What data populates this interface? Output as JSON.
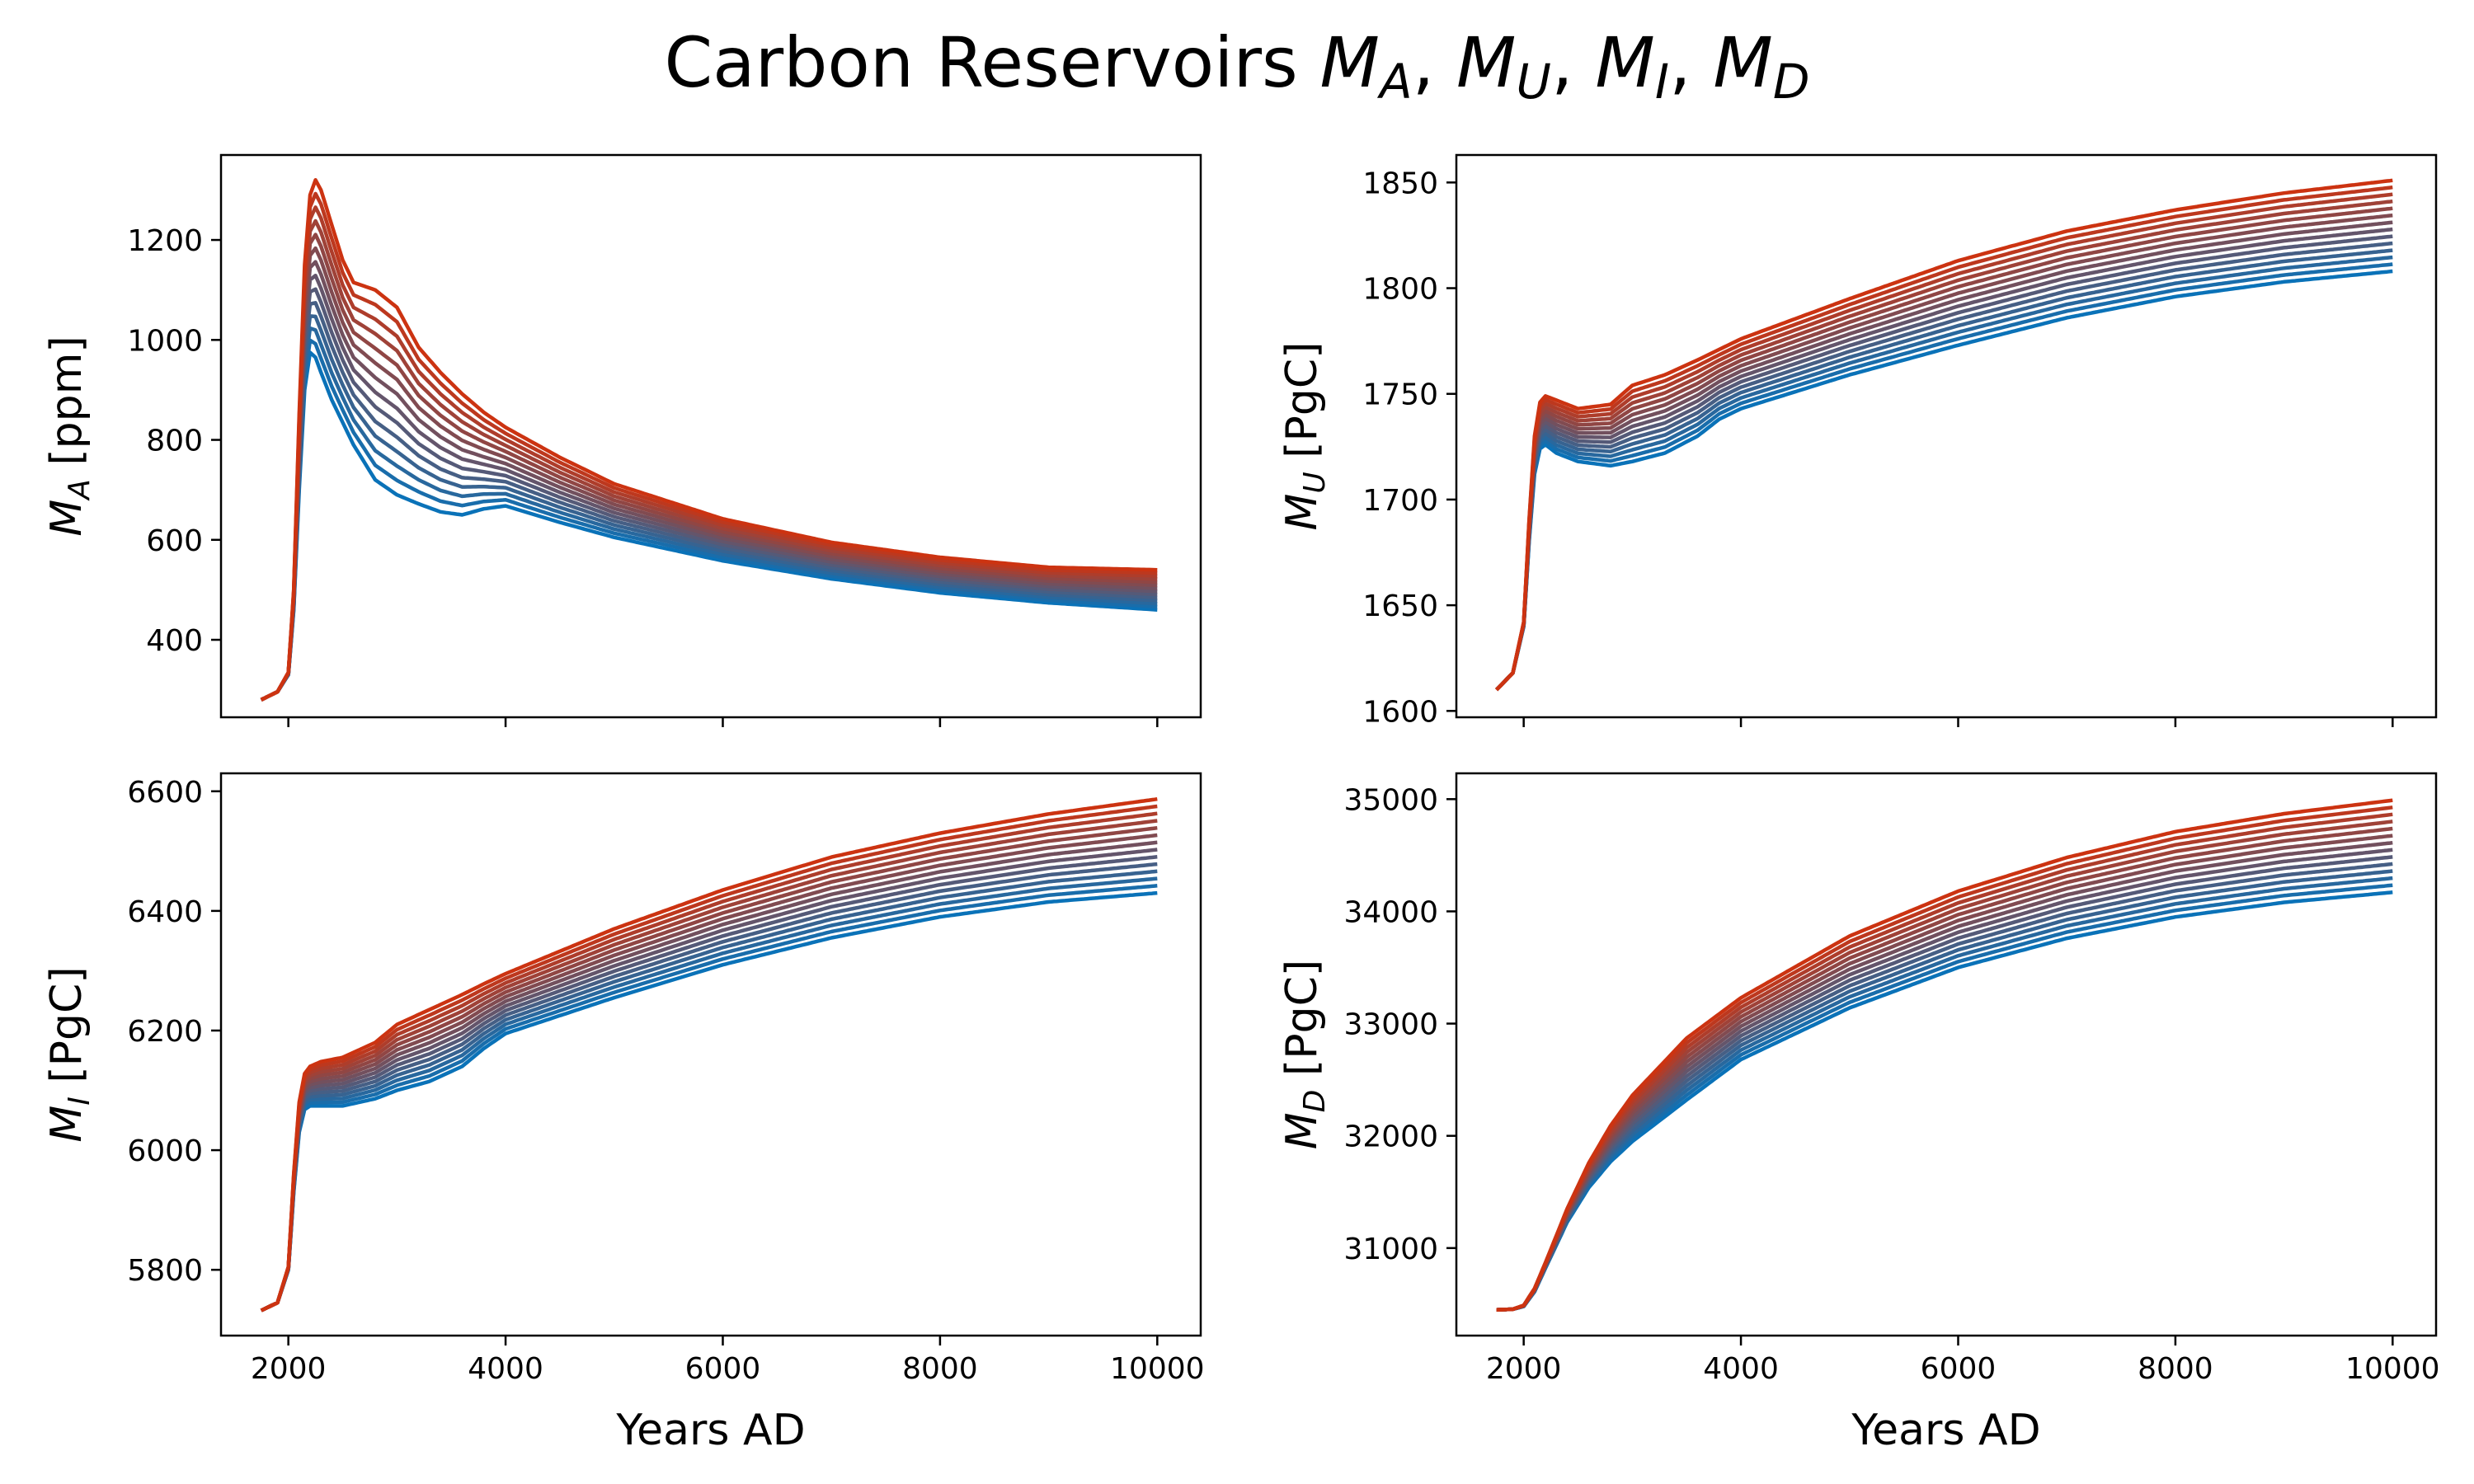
{
  "figure_title": {
    "prefix": "Carbon Reservoirs ",
    "math": [
      {
        "base": "M",
        "sub": "A"
      },
      {
        "base": "M",
        "sub": "U"
      },
      {
        "base": "M",
        "sub": "I"
      },
      {
        "base": "M",
        "sub": "D"
      }
    ],
    "sep": ", "
  },
  "colors": {
    "low": "#0a72b8",
    "high": "#cc3311",
    "axes": "#000000",
    "background": "#ffffff"
  },
  "ensemble": {
    "members": 14
  },
  "chart_data": [
    {
      "id": "MA",
      "type": "line",
      "ylabel": {
        "base": "M",
        "sub": "A",
        "unit": " [ppm]"
      },
      "xlabel": "",
      "xlim": [
        1380,
        10400
      ],
      "ylim": [
        245,
        1370
      ],
      "xticks": [
        2000,
        4000,
        6000,
        8000,
        10000
      ],
      "xtick_labels": [],
      "yticks": [
        400,
        600,
        800,
        1000,
        1200
      ],
      "ytick_labels": [
        "400",
        "600",
        "800",
        "1000",
        "1200"
      ],
      "series_lo": {
        "x": [
          1750,
          1900,
          2000,
          2050,
          2100,
          2150,
          2200,
          2250,
          2300,
          2400,
          2500,
          2600,
          2800,
          3000,
          3200,
          3400,
          3600,
          3800,
          4000,
          4500,
          5000,
          6000,
          7000,
          8000,
          9000,
          10000
        ],
        "y": [
          280,
          296,
          330,
          460,
          700,
          900,
          975,
          965,
          935,
          880,
          835,
          790,
          720,
          690,
          672,
          656,
          650,
          662,
          668,
          635,
          605,
          558,
          522,
          494,
          474,
          460
        ]
      },
      "series_hi": {
        "x": [
          1750,
          1900,
          2000,
          2050,
          2100,
          2150,
          2200,
          2250,
          2300,
          2400,
          2500,
          2600,
          2800,
          3000,
          3200,
          3400,
          3600,
          3800,
          4000,
          4500,
          5000,
          6000,
          7000,
          8000,
          9000,
          10000
        ],
        "y": [
          280,
          296,
          335,
          500,
          850,
          1150,
          1290,
          1320,
          1300,
          1230,
          1160,
          1115,
          1100,
          1065,
          985,
          935,
          892,
          855,
          825,
          765,
          712,
          642,
          595,
          565,
          545,
          540
        ]
      }
    },
    {
      "id": "MU",
      "type": "line",
      "ylabel": {
        "base": "M",
        "sub": "U",
        "unit": " [PgC]"
      },
      "xlabel": "",
      "xlim": [
        1380,
        10400
      ],
      "ylim": [
        1597,
        1863
      ],
      "xticks": [
        2000,
        4000,
        6000,
        8000,
        10000
      ],
      "xtick_labels": [],
      "yticks": [
        1600,
        1650,
        1700,
        1750,
        1800,
        1850
      ],
      "ytick_labels": [
        "1600",
        "1650",
        "1700",
        "1750",
        "1800",
        "1850"
      ],
      "series_lo": {
        "x": [
          1750,
          1900,
          2000,
          2050,
          2100,
          2150,
          2200,
          2300,
          2500,
          2800,
          3000,
          3300,
          3600,
          3800,
          4000,
          5000,
          6000,
          7000,
          8000,
          9000,
          10000
        ],
        "y": [
          1610,
          1618,
          1640,
          1680,
          1712,
          1724,
          1726,
          1722,
          1718,
          1716,
          1718,
          1722,
          1730,
          1738,
          1743,
          1759,
          1773,
          1786,
          1796,
          1803,
          1808
        ]
      },
      "series_hi": {
        "x": [
          1750,
          1900,
          2000,
          2050,
          2100,
          2150,
          2200,
          2300,
          2500,
          2800,
          3000,
          3300,
          3600,
          3800,
          4000,
          5000,
          6000,
          7000,
          8000,
          9000,
          10000
        ],
        "y": [
          1610,
          1618,
          1642,
          1690,
          1730,
          1746,
          1749,
          1747,
          1743,
          1745,
          1754,
          1759,
          1766,
          1771,
          1776,
          1795,
          1813,
          1827,
          1837,
          1845,
          1851
        ]
      }
    },
    {
      "id": "MI",
      "type": "line",
      "ylabel": {
        "base": "M",
        "sub": "I",
        "unit": " [PgC]"
      },
      "xlabel": "Years AD",
      "xlim": [
        1380,
        10400
      ],
      "ylim": [
        5690,
        6630
      ],
      "xticks": [
        2000,
        4000,
        6000,
        8000,
        10000
      ],
      "xtick_labels": [
        "2000",
        "4000",
        "6000",
        "8000",
        "10000"
      ],
      "yticks": [
        5800,
        6000,
        6200,
        6400,
        6600
      ],
      "ytick_labels": [
        "5800",
        "6000",
        "6200",
        "6400",
        "6600"
      ],
      "series_lo": {
        "x": [
          1750,
          1900,
          2000,
          2050,
          2100,
          2150,
          2200,
          2300,
          2500,
          2800,
          3000,
          3300,
          3600,
          3800,
          4000,
          5000,
          6000,
          7000,
          8000,
          9000,
          10000
        ],
        "y": [
          5732,
          5745,
          5800,
          5930,
          6030,
          6068,
          6074,
          6074,
          6074,
          6086,
          6100,
          6115,
          6140,
          6170,
          6195,
          6255,
          6310,
          6355,
          6390,
          6415,
          6430
        ]
      },
      "series_hi": {
        "x": [
          1750,
          1900,
          2000,
          2050,
          2100,
          2150,
          2200,
          2300,
          2500,
          2800,
          3000,
          3300,
          3600,
          3800,
          4000,
          5000,
          6000,
          7000,
          8000,
          9000,
          10000
        ],
        "y": [
          5732,
          5745,
          5805,
          5960,
          6080,
          6128,
          6140,
          6148,
          6155,
          6180,
          6210,
          6235,
          6260,
          6278,
          6295,
          6370,
          6435,
          6490,
          6530,
          6562,
          6587
        ]
      }
    },
    {
      "id": "MD",
      "type": "line",
      "ylabel": {
        "base": "M",
        "sub": "D",
        "unit": " [PgC]"
      },
      "xlabel": "Years AD",
      "xlim": [
        1380,
        10400
      ],
      "ylim": [
        30220,
        35230
      ],
      "xticks": [
        2000,
        4000,
        6000,
        8000,
        10000
      ],
      "xtick_labels": [
        "2000",
        "4000",
        "6000",
        "8000",
        "10000"
      ],
      "yticks": [
        31000,
        32000,
        33000,
        34000,
        35000
      ],
      "ytick_labels": [
        "31000",
        "32000",
        "33000",
        "34000",
        "35000"
      ],
      "series_lo": {
        "x": [
          1750,
          1900,
          2000,
          2100,
          2200,
          2400,
          2600,
          2800,
          3000,
          3500,
          4000,
          5000,
          6000,
          7000,
          8000,
          9000,
          10000
        ],
        "y": [
          30450,
          30455,
          30480,
          30610,
          30820,
          31230,
          31540,
          31770,
          31950,
          32320,
          32680,
          33140,
          33500,
          33760,
          33950,
          34080,
          34170
        ]
      },
      "series_hi": {
        "x": [
          1750,
          1900,
          2000,
          2100,
          2200,
          2400,
          2600,
          2800,
          3000,
          3500,
          4000,
          5000,
          6000,
          7000,
          8000,
          9000,
          10000
        ],
        "y": [
          30450,
          30455,
          30490,
          30640,
          30870,
          31350,
          31760,
          32090,
          32360,
          32870,
          33230,
          33780,
          34180,
          34480,
          34710,
          34870,
          34990
        ]
      }
    }
  ]
}
